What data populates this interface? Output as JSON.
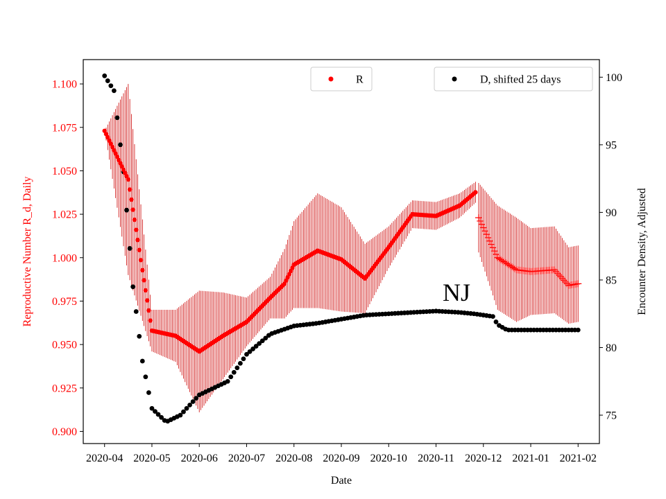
{
  "chart_data": {
    "type": "scatter",
    "xlabel": "Date",
    "ylabel_left": "Reproductive Number R_d, Daily",
    "ylabel_right": "Encounter Density, Adjusted",
    "annotation": "NJ",
    "x_ticks": [
      "2020-04",
      "2020-05",
      "2020-06",
      "2020-07",
      "2020-08",
      "2020-09",
      "2020-10",
      "2020-11",
      "2020-12",
      "2021-01",
      "2021-02"
    ],
    "y_left_ticks": [
      "0.900",
      "0.925",
      "0.950",
      "0.975",
      "1.000",
      "1.025",
      "1.050",
      "1.075",
      "1.100"
    ],
    "y_left_range": [
      0.893,
      1.114
    ],
    "y_right_ticks": [
      "75",
      "80",
      "85",
      "90",
      "95",
      "100"
    ],
    "y_right_range": [
      72.9,
      101.3
    ],
    "x_range_months": [
      -0.45,
      10.45
    ],
    "legend": [
      {
        "label": "R",
        "color": "#ff0000",
        "position": "top-center"
      },
      {
        "label": "D, shifted 25 days",
        "color": "#000000",
        "position": "top-right"
      }
    ],
    "colors": {
      "R": "#ff0000",
      "R_error": "#cc0000",
      "D": "#000000"
    },
    "series": [
      {
        "name": "R",
        "axis": "left",
        "marker": "dot",
        "x": [
          0.0,
          0.5,
          1.0,
          1.5,
          2.0,
          2.5,
          3.0,
          3.5,
          3.8,
          4.0,
          4.5,
          5.0,
          5.5,
          6.0,
          6.5,
          7.0,
          7.5,
          7.85
        ],
        "y": [
          1.073,
          1.045,
          0.958,
          0.955,
          0.946,
          0.955,
          0.963,
          0.977,
          0.985,
          0.996,
          1.004,
          0.999,
          0.988,
          1.006,
          1.025,
          1.024,
          1.03,
          1.038
        ],
        "err": [
          0.0,
          0.055,
          0.012,
          0.015,
          0.035,
          0.025,
          0.014,
          0.012,
          0.02,
          0.025,
          0.033,
          0.03,
          0.02,
          0.012,
          0.008,
          0.008,
          0.007,
          0.006
        ]
      },
      {
        "name": "R",
        "axis": "left",
        "marker": "plus",
        "x": [
          7.9,
          8.3,
          8.7,
          9.0,
          9.5,
          9.8,
          10.0
        ],
        "y": [
          1.023,
          1.0,
          0.993,
          0.992,
          0.993,
          0.984,
          0.985
        ],
        "err": [
          0.02,
          0.03,
          0.03,
          0.025,
          0.025,
          0.022,
          0.022
        ]
      },
      {
        "name": "D, shifted 25 days",
        "axis": "right",
        "marker": "dot",
        "x": [
          0.0,
          0.2,
          0.4,
          0.6,
          0.8,
          1.0,
          1.3,
          1.6,
          2.0,
          2.3,
          2.6,
          3.0,
          3.5,
          4.0,
          4.5,
          5.0,
          5.5,
          6.0,
          6.5,
          7.0,
          7.5,
          7.8,
          8.2,
          8.3,
          8.5,
          9.0,
          10.0
        ],
        "y": [
          100.1,
          99.0,
          93.0,
          84.5,
          79.0,
          75.5,
          74.5,
          75.0,
          76.5,
          77.0,
          77.5,
          79.5,
          81.0,
          81.6,
          81.8,
          82.1,
          82.4,
          82.5,
          82.6,
          82.7,
          82.6,
          82.5,
          82.3,
          81.7,
          81.3,
          81.3,
          81.3
        ]
      }
    ]
  }
}
